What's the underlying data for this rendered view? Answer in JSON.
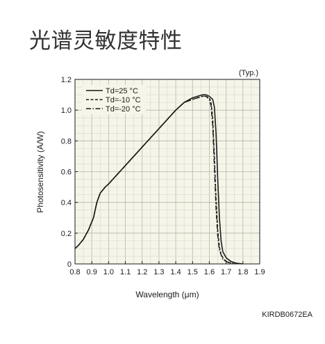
{
  "page": {
    "title": "光谱灵敏度特性",
    "figure_code": "KIRDB0672EA"
  },
  "chart_data": {
    "type": "line",
    "title": "",
    "note": "(Typ.)",
    "xlabel": "Wavelength (μm)",
    "ylabel": "Photosensitivity (A/W)",
    "xlim": [
      0.8,
      1.9
    ],
    "ylim": [
      0,
      1.2
    ],
    "grid": true,
    "legend_position": "top-left",
    "x_ticks": [
      0.8,
      0.9,
      1.0,
      1.1,
      1.2,
      1.3,
      1.4,
      1.5,
      1.6,
      1.7,
      1.8,
      1.9
    ],
    "x_tick_labels": [
      "0.8",
      "0.9",
      "1.0",
      "1.1",
      "1.2",
      "1.3",
      "1.4",
      "1.5",
      "1.6",
      "1.7",
      "1.8",
      "1.9"
    ],
    "y_ticks": [
      0,
      0.2,
      0.4,
      0.6,
      0.8,
      1.0,
      1.2
    ],
    "y_tick_labels": [
      "0",
      "0.2",
      "0.4",
      "0.6",
      "0.8",
      "1.0",
      "1.2"
    ],
    "series": [
      {
        "name": "Td=25 °C",
        "dash": "solid",
        "color": "#1a1a1a",
        "x": [
          0.8,
          0.82,
          0.85,
          0.88,
          0.91,
          0.93,
          0.95,
          0.98,
          1.0,
          1.05,
          1.1,
          1.15,
          1.2,
          1.25,
          1.3,
          1.35,
          1.4,
          1.45,
          1.5,
          1.53,
          1.56,
          1.58,
          1.6,
          1.62,
          1.63,
          1.64,
          1.65,
          1.66,
          1.67,
          1.68,
          1.7,
          1.73,
          1.76,
          1.8
        ],
        "y": [
          0.1,
          0.12,
          0.16,
          0.22,
          0.3,
          0.4,
          0.46,
          0.5,
          0.52,
          0.58,
          0.64,
          0.7,
          0.76,
          0.82,
          0.88,
          0.94,
          1.0,
          1.05,
          1.08,
          1.09,
          1.1,
          1.1,
          1.09,
          1.07,
          1.02,
          0.85,
          0.55,
          0.3,
          0.15,
          0.08,
          0.04,
          0.015,
          0.005,
          0.0
        ]
      },
      {
        "name": "Td=-10 °C",
        "dash": "dashed",
        "color": "#1a1a1a",
        "x": [
          0.8,
          0.82,
          0.85,
          0.88,
          0.91,
          0.93,
          0.95,
          0.98,
          1.0,
          1.05,
          1.1,
          1.15,
          1.2,
          1.25,
          1.3,
          1.35,
          1.4,
          1.45,
          1.5,
          1.53,
          1.56,
          1.58,
          1.6,
          1.61,
          1.62,
          1.63,
          1.64,
          1.65,
          1.66,
          1.67,
          1.69,
          1.72,
          1.75
        ],
        "y": [
          0.1,
          0.12,
          0.16,
          0.22,
          0.3,
          0.4,
          0.46,
          0.5,
          0.52,
          0.58,
          0.64,
          0.7,
          0.76,
          0.82,
          0.88,
          0.94,
          1.0,
          1.05,
          1.07,
          1.08,
          1.09,
          1.09,
          1.08,
          1.05,
          0.95,
          0.7,
          0.42,
          0.22,
          0.11,
          0.06,
          0.025,
          0.008,
          0.0
        ]
      },
      {
        "name": "Td=-20 °C",
        "dash": "dashdot",
        "color": "#1a1a1a",
        "x": [
          0.8,
          0.82,
          0.85,
          0.88,
          0.91,
          0.93,
          0.95,
          0.98,
          1.0,
          1.05,
          1.1,
          1.15,
          1.2,
          1.25,
          1.3,
          1.35,
          1.4,
          1.45,
          1.5,
          1.53,
          1.56,
          1.58,
          1.6,
          1.61,
          1.62,
          1.63,
          1.64,
          1.65,
          1.66,
          1.68,
          1.71,
          1.74
        ],
        "y": [
          0.1,
          0.12,
          0.16,
          0.22,
          0.3,
          0.4,
          0.46,
          0.5,
          0.52,
          0.58,
          0.64,
          0.7,
          0.76,
          0.82,
          0.88,
          0.94,
          1.0,
          1.05,
          1.07,
          1.08,
          1.09,
          1.09,
          1.07,
          1.03,
          0.9,
          0.63,
          0.36,
          0.18,
          0.09,
          0.03,
          0.01,
          0.0
        ]
      }
    ]
  }
}
